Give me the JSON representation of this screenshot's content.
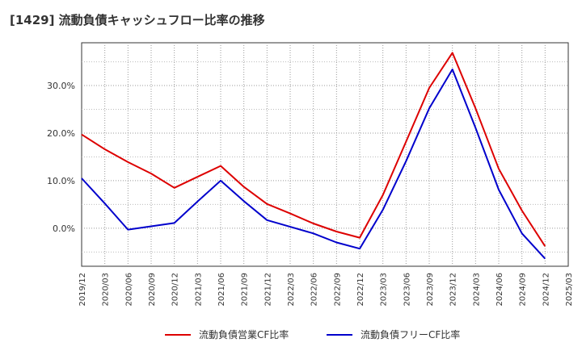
{
  "title": "[1429]  流動負債キャッシュフロー比率の推移",
  "chart_data": {
    "type": "line",
    "title": "[1429]  流動負債キャッシュフロー比率の推移",
    "x": [
      "2019/12",
      "2020/03",
      "2020/06",
      "2020/09",
      "2020/12",
      "2021/03",
      "2021/06",
      "2021/09",
      "2021/12",
      "2022/03",
      "2022/06",
      "2022/09",
      "2022/12",
      "2023/03",
      "2023/06",
      "2023/09",
      "2023/12",
      "2024/03",
      "2024/06",
      "2024/09",
      "2024/12",
      "2025/03"
    ],
    "ylim": [
      -8,
      39
    ],
    "y_ticks": [
      0,
      10,
      20,
      30
    ],
    "y_tick_labels": [
      "0.0%",
      "10.0%",
      "20.0%",
      "30.0%"
    ],
    "grid": true,
    "legend_position": "bottom",
    "series": [
      {
        "name": "流動負債営業CF比率",
        "color": "#dd0000",
        "values": [
          19.7,
          16.6,
          13.9,
          11.5,
          8.5,
          10.8,
          13.1,
          8.7,
          5.1,
          3.1,
          1.0,
          -0.7,
          -2.0,
          7.0,
          18.2,
          29.5,
          36.9,
          25.2,
          12.5,
          3.7,
          -3.8,
          null
        ]
      },
      {
        "name": "流動負債フリーCF比率",
        "color": "#0000cc",
        "values": [
          10.5,
          5.2,
          -0.3,
          0.4,
          1.1,
          5.6,
          10.0,
          5.7,
          1.7,
          0.3,
          -1.1,
          -3.0,
          -4.3,
          3.9,
          14.1,
          25.2,
          33.4,
          21.1,
          8.1,
          -1.1,
          -6.4,
          null
        ]
      }
    ]
  }
}
